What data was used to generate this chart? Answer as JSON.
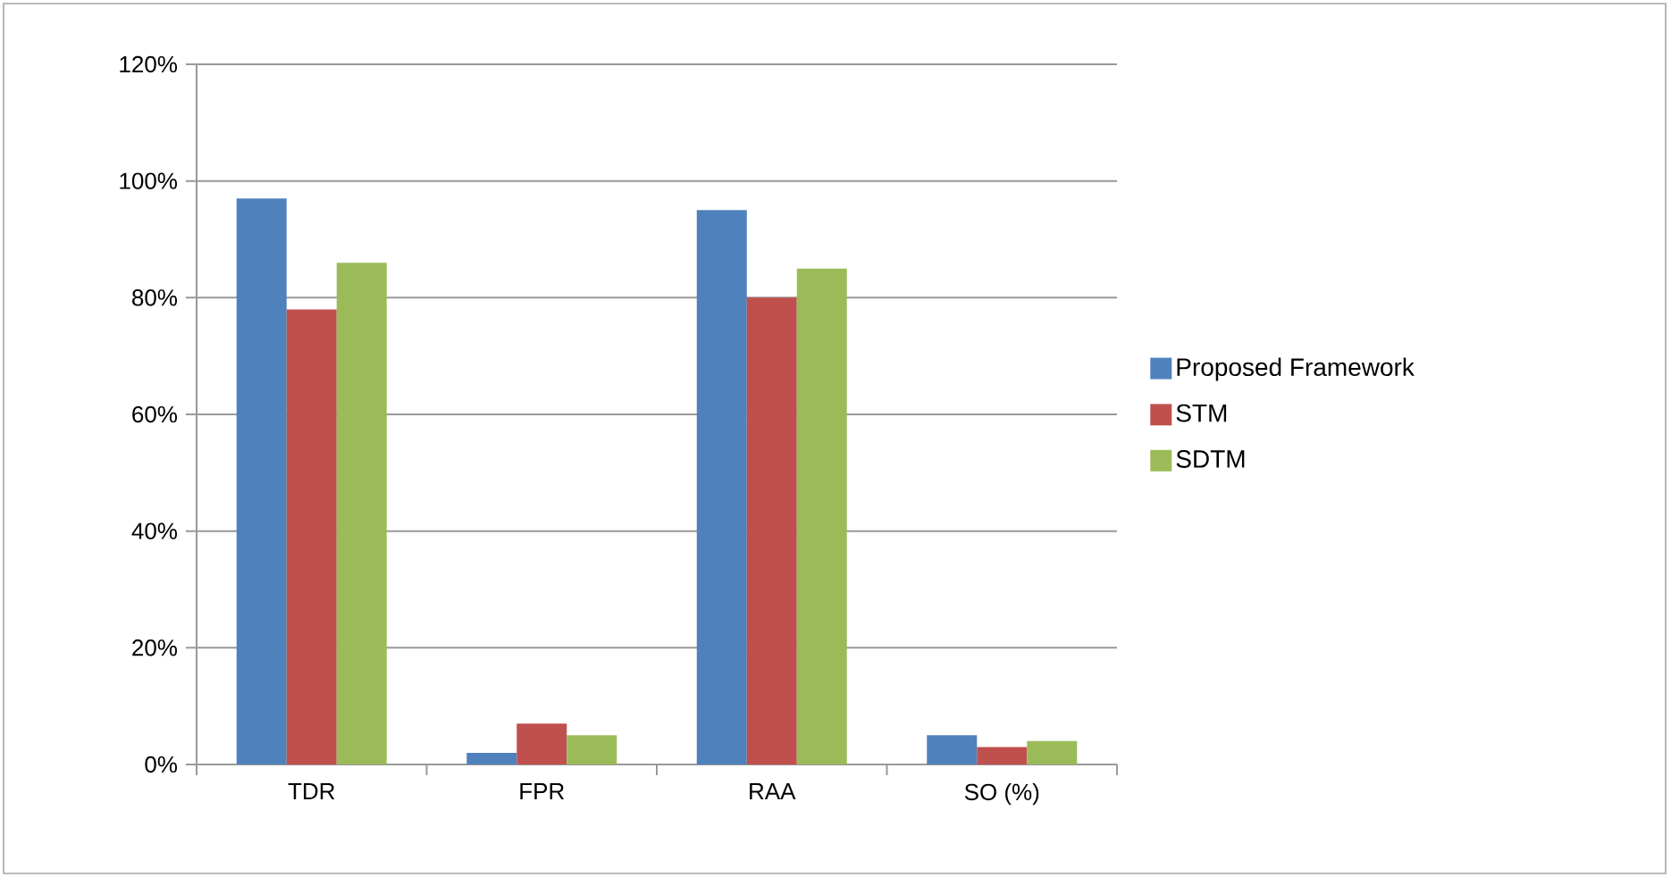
{
  "chart_data": {
    "type": "bar",
    "categories": [
      "TDR",
      "FPR",
      "RAA",
      "SO (%)"
    ],
    "series": [
      {
        "name": "Proposed Framework",
        "color": "#4f81bd",
        "values": [
          97,
          2,
          95,
          5
        ]
      },
      {
        "name": "STM",
        "color": "#c0504d",
        "values": [
          78,
          7,
          80,
          3
        ]
      },
      {
        "name": "SDTM",
        "color": "#9bbb59",
        "values": [
          86,
          5,
          85,
          4
        ]
      }
    ],
    "ylim": [
      0,
      120
    ],
    "yticks": [
      {
        "value": 0,
        "label": "0%"
      },
      {
        "value": 20,
        "label": "20%"
      },
      {
        "value": 40,
        "label": "40%"
      },
      {
        "value": 60,
        "label": "60%"
      },
      {
        "value": 80,
        "label": "80%"
      },
      {
        "value": 100,
        "label": "100%"
      },
      {
        "value": 120,
        "label": "120%"
      }
    ],
    "grid": "y",
    "legend": "right"
  }
}
